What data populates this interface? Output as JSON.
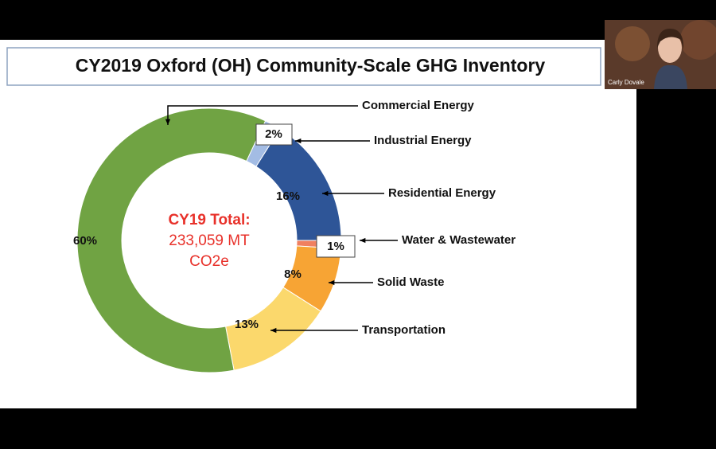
{
  "chart_data": {
    "type": "pie",
    "title": "CY2019 Oxford (OH) Community-Scale GHG Inventory",
    "categories": [
      "Water & Wastewater",
      "Solid Waste",
      "Transportation",
      "Commercial Energy",
      "Industrial Energy",
      "Residential Energy"
    ],
    "values": [
      1,
      8,
      13,
      60,
      2,
      16
    ],
    "value_labels": [
      "1%",
      "8%",
      "13%",
      "60%",
      "2%",
      "16%"
    ],
    "colors": [
      "#f08060",
      "#f7a434",
      "#fbd86c",
      "#70a343",
      "#a3bce4",
      "#2e5597"
    ],
    "center_title": "CY19 Total:",
    "center_text": [
      "233,059 MT",
      "CO2e"
    ]
  },
  "participant": {
    "name": "Carly Dovale"
  }
}
